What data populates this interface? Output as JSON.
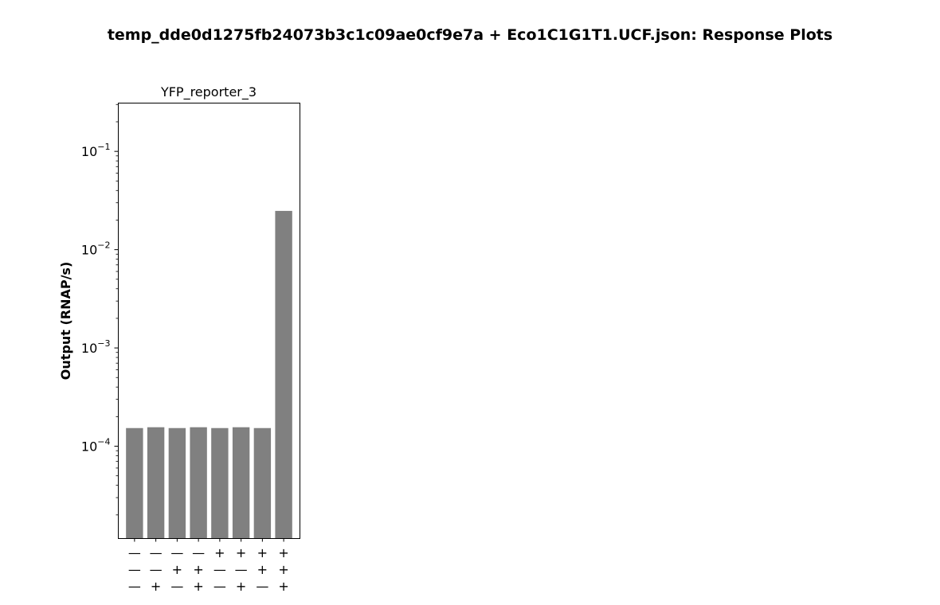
{
  "chart_data": {
    "type": "bar",
    "title": "temp_dde0d1275fb24073b3c1c09ae0cf9e7a + Eco1C1G1T1.UCF.json: Response Plots",
    "subplot_title": "YFP_reporter_3",
    "ylabel": "Output (RNAP/s)",
    "xlabel": "",
    "yscale": "log",
    "ylim": [
      1.15e-05,
      0.31
    ],
    "y_ticks": [
      {
        "value": 0.0001,
        "mantissa": "10",
        "exp": "−4"
      },
      {
        "value": 0.001,
        "mantissa": "10",
        "exp": "−3"
      },
      {
        "value": 0.01,
        "mantissa": "10",
        "exp": "−2"
      },
      {
        "value": 0.1,
        "mantissa": "10",
        "exp": "−1"
      }
    ],
    "categories": [
      [
        "—",
        "—",
        "—"
      ],
      [
        "—",
        "—",
        "+"
      ],
      [
        "—",
        "+",
        "—"
      ],
      [
        "—",
        "+",
        "+"
      ],
      [
        "+",
        "—",
        "—"
      ],
      [
        "+",
        "—",
        "+"
      ],
      [
        "+",
        "+",
        "—"
      ],
      [
        "+",
        "+",
        "+"
      ]
    ],
    "values": [
      0.000153,
      0.000156,
      0.000153,
      0.000156,
      0.000153,
      0.000156,
      0.000153,
      0.0248
    ],
    "bar_color": "#808080",
    "grid": false,
    "legend": "none"
  }
}
